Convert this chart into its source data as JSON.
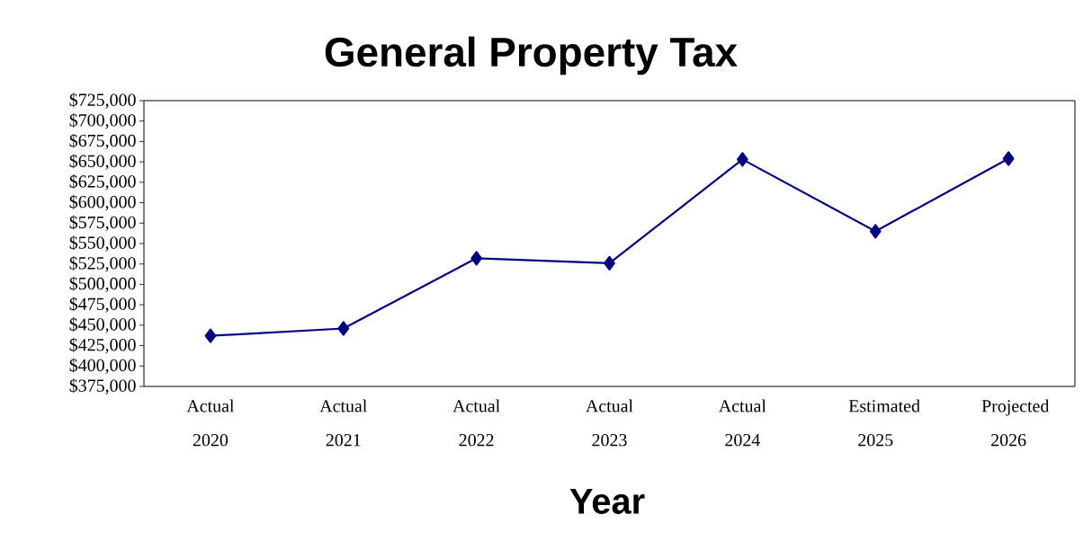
{
  "chart_data": {
    "type": "line",
    "title": "General Property Tax",
    "xlabel": "Year",
    "categories": [
      "Actual 2020",
      "Actual 2021",
      "Actual 2022",
      "Actual 2023",
      "Actual 2024",
      "Estimated 2025",
      "Projected 2026"
    ],
    "series": [
      {
        "color": "#000080",
        "values": [
          437000,
          446000,
          532000,
          526000,
          653000,
          565000,
          654000
        ]
      }
    ],
    "ylim": [
      375000,
      725000
    ],
    "yticks": [
      {
        "value": 375000,
        "label": "$375,000"
      },
      {
        "value": 400000,
        "label": "$400,000"
      },
      {
        "value": 425000,
        "label": "$425,000"
      },
      {
        "value": 450000,
        "label": "$450,000"
      },
      {
        "value": 475000,
        "label": "$475,000"
      },
      {
        "value": 500000,
        "label": "$500,000"
      },
      {
        "value": 525000,
        "label": "$525,000"
      },
      {
        "value": 550000,
        "label": "$550,000"
      },
      {
        "value": 575000,
        "label": "$575,000"
      },
      {
        "value": 600000,
        "label": "$600,000"
      },
      {
        "value": 625000,
        "label": "$625,000"
      },
      {
        "value": 650000,
        "label": "$650,000"
      },
      {
        "value": 675000,
        "label": "$675,000"
      },
      {
        "value": 700000,
        "label": "$700,000"
      },
      {
        "value": 725000,
        "label": "$725,000"
      }
    ],
    "marker": "diamond",
    "line_style": "solid",
    "grid": false
  }
}
